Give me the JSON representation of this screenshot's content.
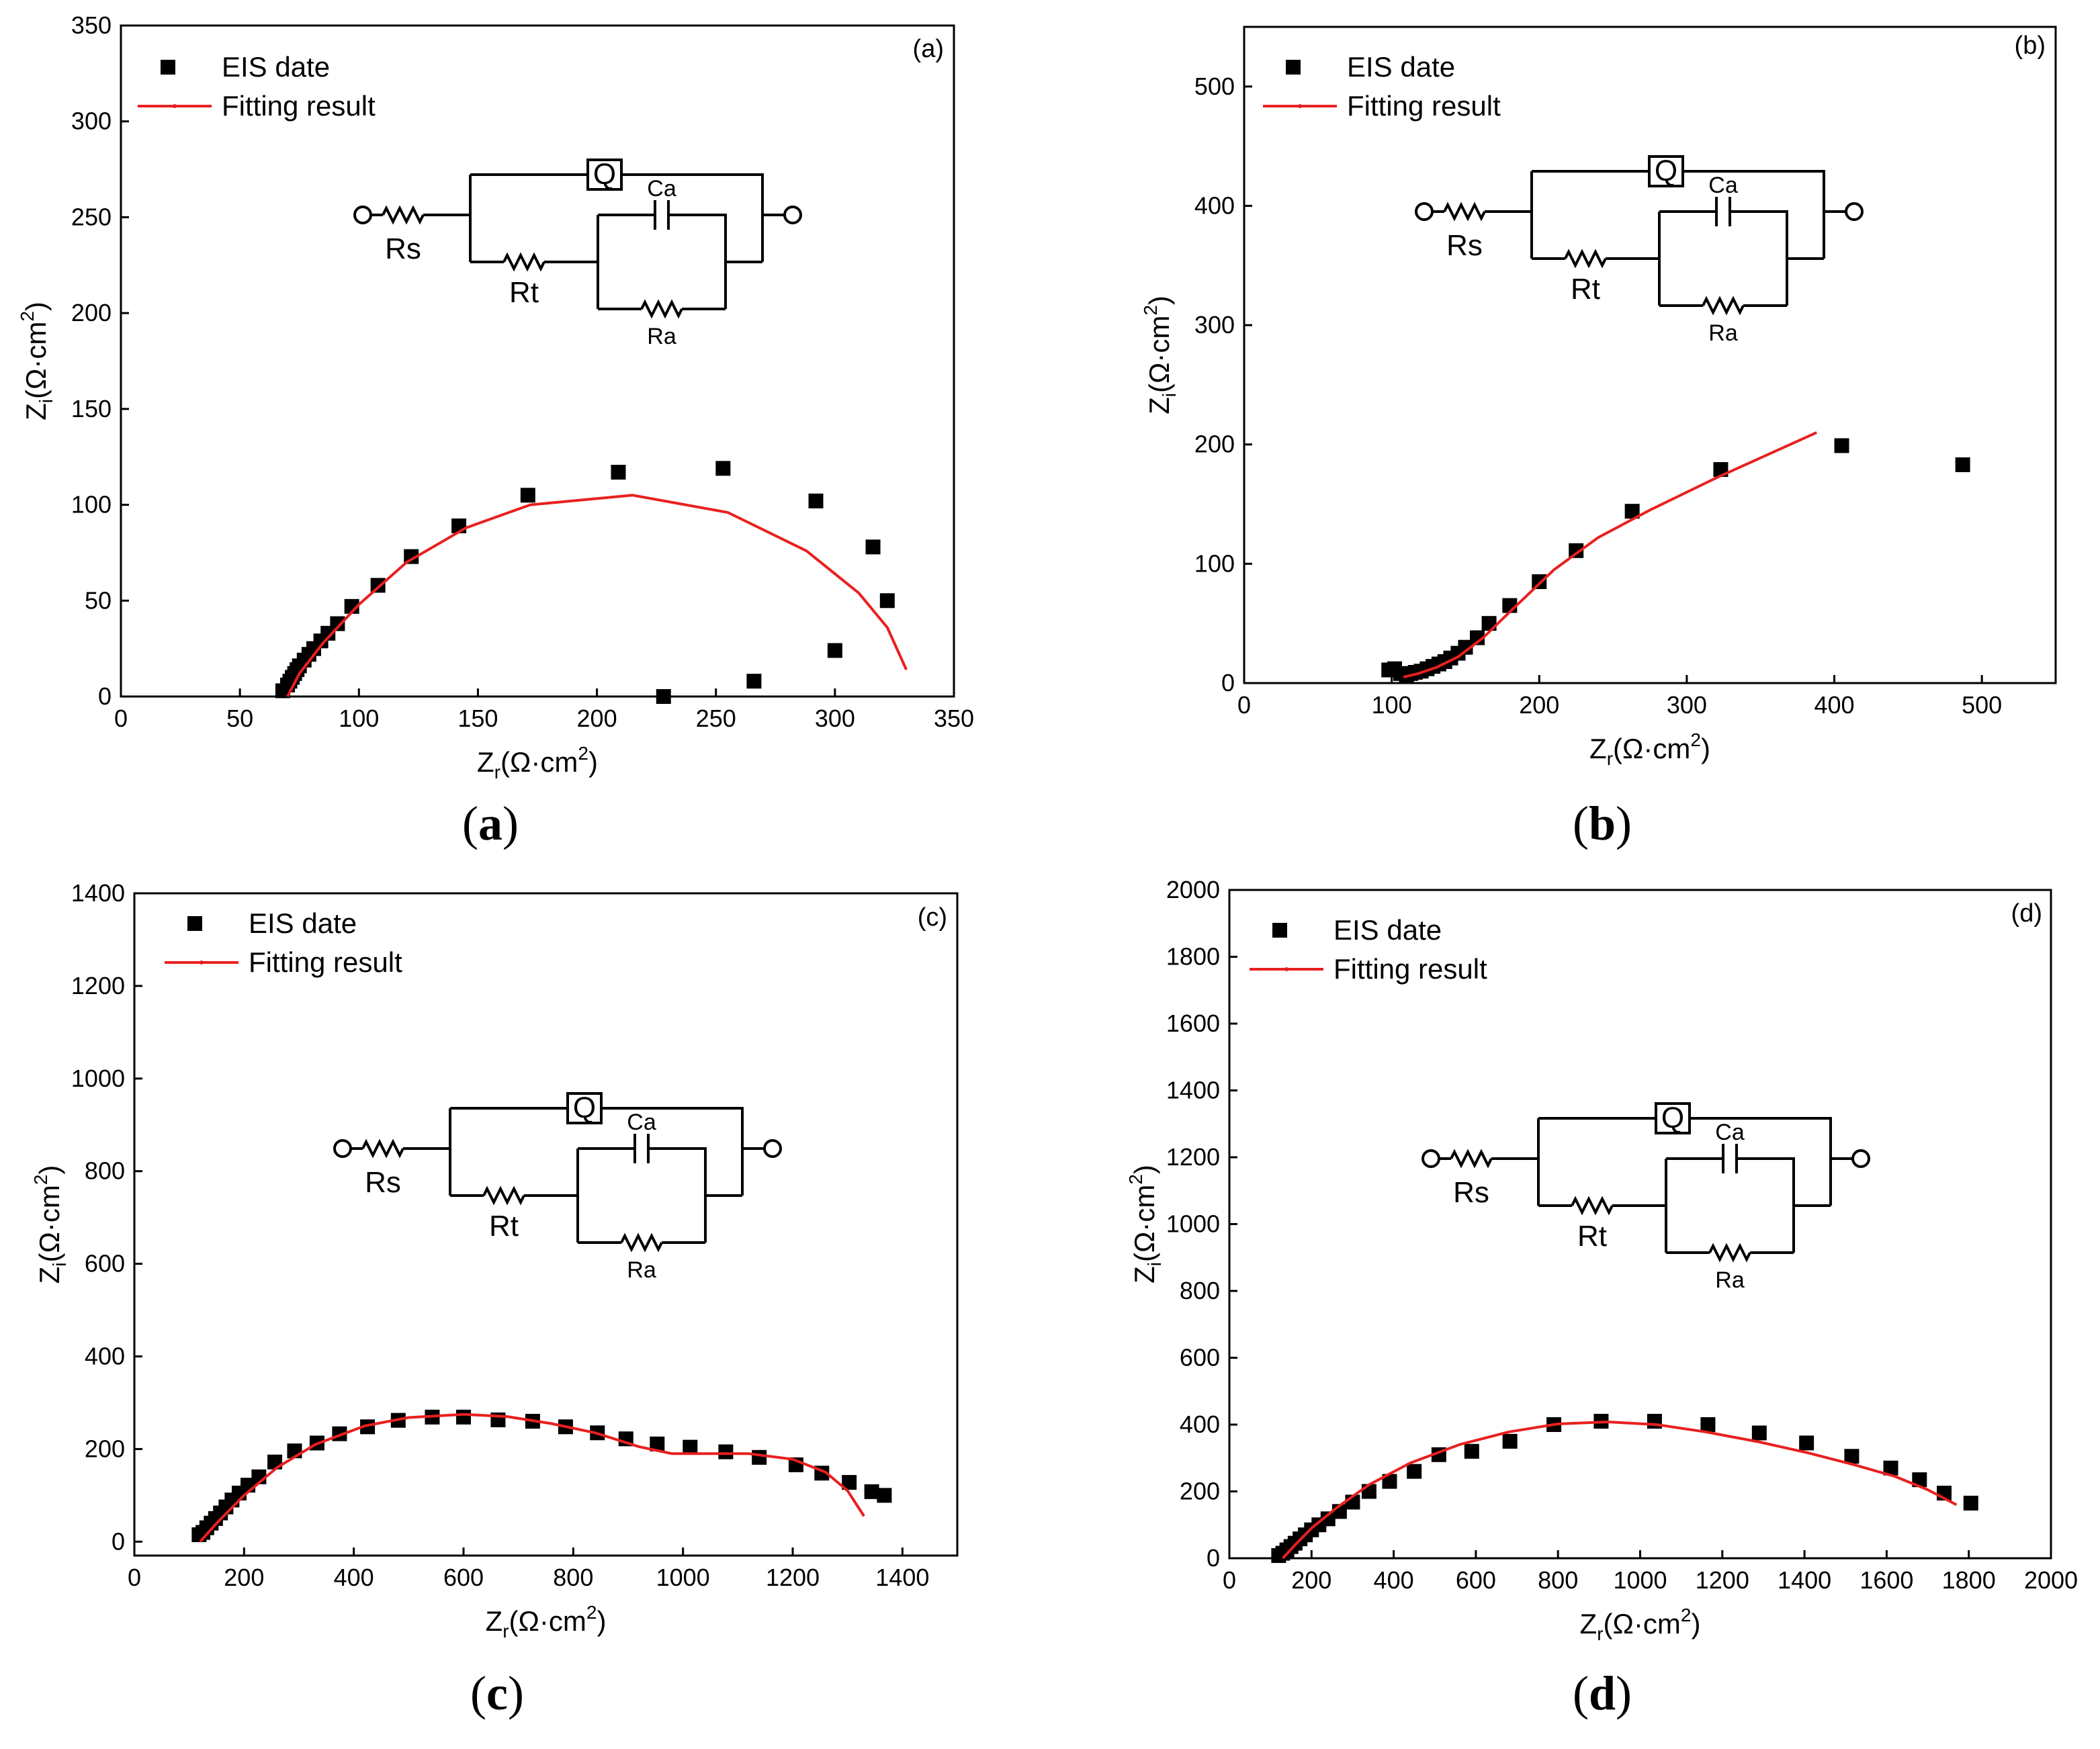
{
  "figure": {
    "legend": {
      "points_label": "EIS date",
      "line_label": "Fitting result"
    },
    "circuit": {
      "Q": "Q",
      "Ca": "Ca",
      "Rs": "Rs",
      "Rt": "Rt",
      "Ra": "Ra"
    },
    "colors": {
      "points": "#000000",
      "fit": "#e8201f",
      "axes": "#000000"
    },
    "axis_labels": {
      "x": {
        "base": "Z",
        "sub": "r",
        "unit": "(Ω·cm",
        "sup": "2",
        "close": ")"
      },
      "y": {
        "base": "Z",
        "sub": "i",
        "unit": "(Ω·cm",
        "sup": "2",
        "close": ")"
      }
    }
  },
  "chart_data": [
    {
      "type": "scatter",
      "panel_label": "(a)",
      "caption": "a",
      "xlim": [
        0,
        350
      ],
      "ylim": [
        0,
        350
      ],
      "xticks": [
        0,
        50,
        100,
        150,
        200,
        250,
        300,
        350
      ],
      "yticks": [
        0,
        50,
        100,
        150,
        200,
        250,
        300,
        350
      ],
      "series": [
        {
          "name": "EIS date",
          "kind": "points",
          "x": [
            68,
            70,
            71,
            72,
            73,
            74,
            75,
            77,
            79,
            81,
            84,
            87,
            91,
            97,
            108,
            122,
            142,
            171,
            209,
            253,
            292,
            316,
            322,
            300,
            266,
            228
          ],
          "y": [
            3,
            6,
            8,
            10,
            12,
            14,
            16,
            19,
            22,
            25,
            29,
            33,
            38,
            47,
            58,
            73,
            89,
            105,
            117,
            119,
            102,
            78,
            50,
            24,
            8,
            0
          ]
        },
        {
          "name": "Fitting result",
          "kind": "line",
          "x": [
            70,
            75,
            85,
            100,
            120,
            145,
            172,
            215,
            255,
            288,
            310,
            322,
            330
          ],
          "y": [
            0,
            12,
            28,
            48,
            70,
            88,
            100,
            105,
            96,
            76,
            54,
            36,
            14
          ]
        }
      ]
    },
    {
      "type": "scatter",
      "panel_label": "(b)",
      "caption": "b",
      "xlim": [
        0,
        550
      ],
      "ylim": [
        0,
        550
      ],
      "xticks": [
        0,
        100,
        200,
        300,
        400,
        500
      ],
      "yticks": [
        0,
        100,
        200,
        300,
        400,
        500
      ],
      "series": [
        {
          "name": "EIS date",
          "kind": "points",
          "x": [
            98,
            102,
            106,
            110,
            113,
            116,
            120,
            124,
            128,
            132,
            136,
            140,
            145,
            150,
            158,
            166,
            180,
            200,
            225,
            263,
            323,
            405,
            487
          ],
          "y": [
            11,
            12,
            8,
            7,
            8,
            9,
            10,
            12,
            14,
            16,
            18,
            21,
            25,
            30,
            38,
            50,
            65,
            85,
            111,
            144,
            179,
            199,
            183
          ]
        },
        {
          "name": "Fitting result",
          "kind": "line",
          "x": [
            108,
            118,
            130,
            145,
            162,
            182,
            210,
            240,
            275,
            320,
            388
          ],
          "y": [
            5,
            8,
            13,
            22,
            38,
            62,
            95,
            122,
            145,
            172,
            210
          ]
        }
      ]
    },
    {
      "type": "scatter",
      "panel_label": "(c)",
      "caption": "c",
      "xlim": [
        0,
        1500
      ],
      "ylim": [
        -30,
        1400
      ],
      "xticks": [
        0,
        200,
        400,
        600,
        800,
        1000,
        1200,
        1400
      ],
      "yticks": [
        0,
        200,
        400,
        600,
        800,
        1000,
        1200,
        1400
      ],
      "series": [
        {
          "name": "EIS date",
          "kind": "points",
          "x": [
            118,
            125,
            132,
            140,
            148,
            157,
            167,
            178,
            191,
            207,
            227,
            256,
            292,
            333,
            374,
            425,
            481,
            543,
            600,
            663,
            726,
            786,
            844,
            896,
            953,
            1013,
            1078,
            1139,
            1206,
            1253,
            1303,
            1344,
            1367
          ],
          "y": [
            15,
            20,
            30,
            40,
            50,
            62,
            75,
            90,
            105,
            122,
            140,
            172,
            196,
            213,
            233,
            248,
            262,
            269,
            269,
            263,
            260,
            248,
            235,
            222,
            211,
            204,
            194,
            182,
            166,
            148,
            128,
            108,
            100
          ]
        },
        {
          "name": "Fitting result",
          "kind": "line",
          "x": [
            120,
            150,
            200,
            260,
            330,
            420,
            500,
            600,
            680,
            760,
            840,
            920,
            980,
            1050,
            1120,
            1200,
            1260,
            1300,
            1330
          ],
          "y": [
            0,
            40,
            100,
            160,
            210,
            250,
            268,
            275,
            270,
            255,
            235,
            205,
            190,
            190,
            190,
            178,
            150,
            110,
            55
          ]
        }
      ]
    },
    {
      "type": "scatter",
      "panel_label": "(d)",
      "caption": "d",
      "xlim": [
        0,
        2000
      ],
      "ylim": [
        0,
        2000
      ],
      "xticks": [
        0,
        200,
        400,
        600,
        800,
        1000,
        1200,
        1400,
        1600,
        1800,
        2000
      ],
      "yticks": [
        0,
        200,
        400,
        600,
        800,
        1000,
        1200,
        1400,
        1600,
        1800,
        2000
      ],
      "series": [
        {
          "name": "EIS date",
          "kind": "points",
          "x": [
            120,
            130,
            140,
            150,
            160,
            172,
            185,
            200,
            218,
            240,
            268,
            300,
            340,
            390,
            450,
            510,
            590,
            683,
            790,
            905,
            1035,
            1165,
            1290,
            1405,
            1515,
            1610,
            1680,
            1740,
            1805
          ],
          "y": [
            8,
            15,
            25,
            35,
            45,
            58,
            70,
            85,
            100,
            118,
            140,
            168,
            200,
            230,
            260,
            310,
            320,
            350,
            400,
            410,
            410,
            400,
            375,
            345,
            305,
            270,
            235,
            195,
            165
          ]
        },
        {
          "name": "Fitting result",
          "kind": "line",
          "x": [
            130,
            160,
            200,
            260,
            340,
            440,
            560,
            680,
            800,
            920,
            1040,
            1160,
            1290,
            1410,
            1520,
            1620,
            1700,
            1770
          ],
          "y": [
            0,
            40,
            90,
            150,
            220,
            285,
            340,
            378,
            402,
            408,
            400,
            378,
            348,
            315,
            280,
            245,
            205,
            160
          ]
        }
      ]
    }
  ]
}
